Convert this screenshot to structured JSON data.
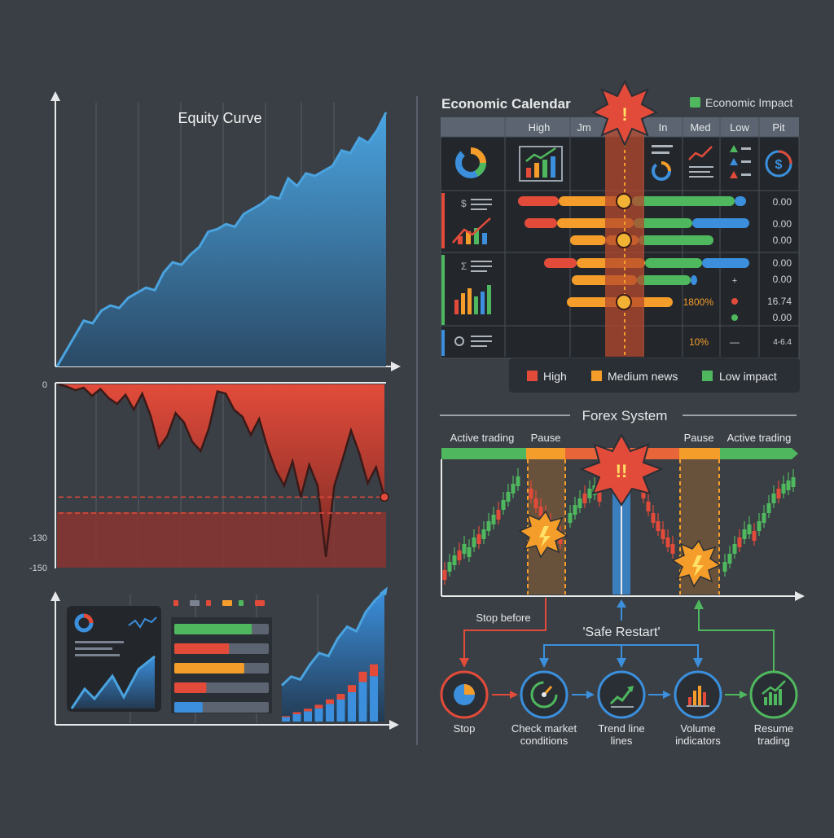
{
  "equity": {
    "title": "Equity Curve",
    "chart_data": {
      "type": "area",
      "title": "Equity Curve",
      "xlabel": "",
      "ylabel": "",
      "y": [
        0,
        6,
        12,
        18,
        17,
        22,
        24,
        23,
        27,
        29,
        31,
        30,
        37,
        41,
        40,
        44,
        47,
        53,
        54,
        56,
        55,
        60,
        62,
        64,
        67,
        66,
        74,
        71,
        76,
        75,
        77,
        79,
        85,
        84,
        90,
        88,
        93,
        100
      ],
      "ylim": [
        0,
        100
      ],
      "grid": "vertical"
    }
  },
  "drawdown": {
    "chart_data": {
      "type": "area",
      "y": [
        0,
        -2,
        -5,
        -3,
        -10,
        -4,
        -12,
        -17,
        -9,
        -22,
        -8,
        -27,
        -55,
        -45,
        -25,
        -33,
        -50,
        -58,
        -38,
        -6,
        -8,
        -22,
        -28,
        -44,
        -30,
        -55,
        -75,
        -88,
        -67,
        -98,
        -70,
        -88,
        -150,
        -88,
        -65,
        -40,
        -60,
        -86,
        -72,
        -98
      ],
      "ylim": [
        -160,
        0
      ],
      "yticks": [
        "0",
        "-130",
        "-150"
      ],
      "thresholds": [
        -98,
        -160
      ]
    }
  },
  "mini": {
    "legend_colors": [
      "#e24b3a",
      "#7a8290",
      "#e24b3a",
      "#f59d2a",
      "#4fb85e",
      "#e24b3a"
    ],
    "bars": [
      {
        "color": "#4fb85e",
        "fill": 0.82
      },
      {
        "color": "#e24b3a",
        "fill": 0.58
      },
      {
        "color": "#f59d2a",
        "fill": 0.74
      },
      {
        "color": "#e24b3a",
        "fill": 0.34
      },
      {
        "color": "#3b8fdc",
        "fill": 0.3
      }
    ],
    "bar_values": [
      [
        6,
        4
      ],
      [
        10,
        8
      ],
      [
        14,
        10
      ],
      [
        18,
        14
      ],
      [
        24,
        18
      ],
      [
        30,
        22
      ],
      [
        40,
        28
      ],
      [
        54,
        40
      ],
      [
        62,
        46
      ]
    ],
    "line": [
      8,
      14,
      12,
      22,
      30,
      28,
      40,
      48,
      45,
      58,
      66,
      72
    ]
  },
  "calendar": {
    "title": "Economic Calendar",
    "legend_top": "Economic Impact",
    "headers": [
      "High",
      "Jm",
      "In",
      "Med",
      "Low",
      "Pit"
    ],
    "values": [
      "0.00",
      "0.00",
      "0.00",
      "0.00",
      "0.00",
      "16.74",
      "0.00",
      "4-6.4"
    ],
    "pct_a": "1800%",
    "pct_b": "10%",
    "plus": "+",
    "dash": "—",
    "legend": [
      "High",
      "Medium news",
      "Low impact"
    ],
    "alert": "!"
  },
  "forex": {
    "title": "Forex System",
    "bands": [
      "Active trading",
      "Pause",
      "Pause",
      "Active trading"
    ],
    "alert": "!!",
    "stop_before": "Stop before",
    "safe_restart": "'Safe Restart'",
    "steps": [
      {
        "label1": "Stop",
        "label2": "",
        "icon": "pie-icon"
      },
      {
        "label1": "Check market",
        "label2": "conditions",
        "icon": "gauge-icon"
      },
      {
        "label1": "Trend line",
        "label2": "lines",
        "icon": "trend-icon"
      },
      {
        "label1": "Volume",
        "label2": "indicators",
        "icon": "volume-icon"
      },
      {
        "label1": "Resume",
        "label2": "trading",
        "icon": "resume-icon"
      }
    ]
  },
  "colors": {
    "bg": "#3a3f45",
    "panel": "#2a2f35",
    "blue": "#3b8fdc",
    "red": "#e24b3a",
    "orange": "#f59d2a",
    "green": "#4fb85e",
    "yellow": "#f2b233"
  }
}
